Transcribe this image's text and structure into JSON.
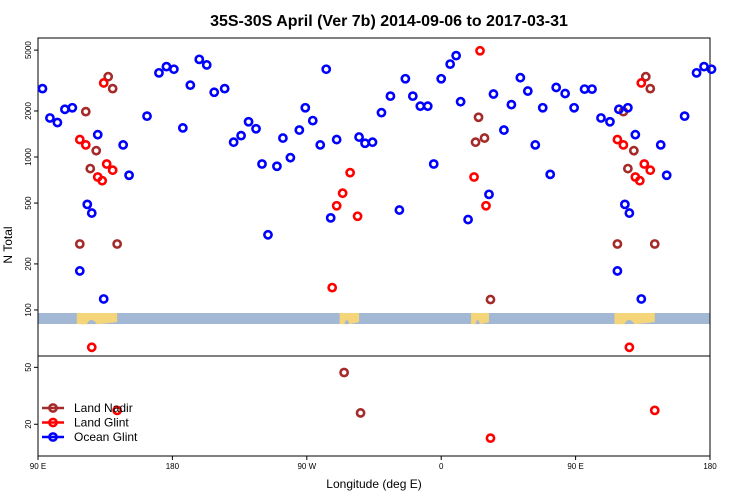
{
  "chart_data": {
    "type": "scatter",
    "title": "35S-30S April (Ver 7b)   2014-09-06 to 2017-03-31",
    "xlabel": "Longitude (deg E)",
    "ylabel": "N Total",
    "x_ticks": [
      {
        "value": 90,
        "label": "90 E"
      },
      {
        "value": 180,
        "label": "180"
      },
      {
        "value": 270,
        "label": "90 W"
      },
      {
        "value": 360,
        "label": "0"
      },
      {
        "value": 450,
        "label": "90 E"
      },
      {
        "value": 540,
        "label": "180"
      }
    ],
    "xlim": [
      90,
      540
    ],
    "upper_panel": {
      "scale": "log",
      "ylim": [
        50,
        6000
      ],
      "y_ticks": [
        {
          "value": 100,
          "label": "100"
        },
        {
          "value": 200,
          "label": "200"
        },
        {
          "value": 500,
          "label": "500"
        },
        {
          "value": 1000,
          "label": "1000"
        },
        {
          "value": 2000,
          "label": "2000"
        },
        {
          "value": 5000,
          "label": "5000"
        }
      ]
    },
    "lower_panel": {
      "scale": "log",
      "ylim": [
        12,
        60
      ],
      "y_ticks": [
        {
          "value": 20,
          "label": "20"
        },
        {
          "value": 50,
          "label": "50"
        }
      ]
    },
    "series": [
      {
        "name": "Land Nadir",
        "color": "#a52a2a",
        "points": [
          [
            118,
            270
          ],
          [
            122,
            1980
          ],
          [
            125,
            840
          ],
          [
            129,
            1100
          ],
          [
            137,
            3350
          ],
          [
            140,
            2800
          ],
          [
            143,
            270
          ],
          [
            295,
            46
          ],
          [
            306,
            24
          ],
          [
            383,
            1250
          ],
          [
            385,
            1820
          ],
          [
            389,
            1330
          ],
          [
            393,
            117
          ],
          [
            478,
            270
          ],
          [
            482,
            1980
          ],
          [
            485,
            840
          ],
          [
            489,
            1100
          ],
          [
            497,
            3350
          ],
          [
            500,
            2800
          ],
          [
            503,
            270
          ]
        ]
      },
      {
        "name": "Land Glint",
        "color": "#ff0000",
        "points": [
          [
            118,
            1300
          ],
          [
            122,
            1200
          ],
          [
            126,
            57
          ],
          [
            130,
            740
          ],
          [
            133,
            700
          ],
          [
            134,
            3050
          ],
          [
            136,
            900
          ],
          [
            140,
            820
          ],
          [
            143,
            25
          ],
          [
            287,
            140
          ],
          [
            290,
            480
          ],
          [
            294,
            580
          ],
          [
            299,
            790
          ],
          [
            304,
            410
          ],
          [
            382,
            740
          ],
          [
            386,
            4950
          ],
          [
            390,
            480
          ],
          [
            393,
            16
          ],
          [
            478,
            1300
          ],
          [
            482,
            1200
          ],
          [
            486,
            57
          ],
          [
            490,
            740
          ],
          [
            493,
            700
          ],
          [
            494,
            3050
          ],
          [
            496,
            900
          ],
          [
            500,
            820
          ],
          [
            503,
            25
          ]
        ]
      },
      {
        "name": "Ocean Glint",
        "color": "#0000ff",
        "points": [
          [
            93,
            2800
          ],
          [
            98,
            1800
          ],
          [
            103,
            1680
          ],
          [
            108,
            2050
          ],
          [
            113,
            2100
          ],
          [
            118,
            180
          ],
          [
            123,
            490
          ],
          [
            126,
            430
          ],
          [
            130,
            1400
          ],
          [
            134,
            118
          ],
          [
            147,
            1200
          ],
          [
            151,
            760
          ],
          [
            163,
            1850
          ],
          [
            171,
            3550
          ],
          [
            176,
            3900
          ],
          [
            181,
            3750
          ],
          [
            187,
            1550
          ],
          [
            192,
            2950
          ],
          [
            198,
            4350
          ],
          [
            203,
            4000
          ],
          [
            208,
            2650
          ],
          [
            215,
            2800
          ],
          [
            221,
            1250
          ],
          [
            226,
            1380
          ],
          [
            231,
            1700
          ],
          [
            236,
            1530
          ],
          [
            240,
            900
          ],
          [
            244,
            310
          ],
          [
            250,
            870
          ],
          [
            254,
            1330
          ],
          [
            259,
            990
          ],
          [
            265,
            1500
          ],
          [
            269,
            2100
          ],
          [
            274,
            1730
          ],
          [
            279,
            1200
          ],
          [
            283,
            3750
          ],
          [
            290,
            1300
          ],
          [
            286,
            400
          ],
          [
            305,
            1350
          ],
          [
            309,
            1230
          ],
          [
            314,
            1250
          ],
          [
            320,
            1950
          ],
          [
            326,
            2500
          ],
          [
            332,
            450
          ],
          [
            336,
            3250
          ],
          [
            341,
            2500
          ],
          [
            346,
            2150
          ],
          [
            351,
            2150
          ],
          [
            355,
            900
          ],
          [
            360,
            3250
          ],
          [
            366,
            4050
          ],
          [
            370,
            4600
          ],
          [
            373,
            2300
          ],
          [
            378,
            390
          ],
          [
            392,
            570
          ],
          [
            395,
            2580
          ],
          [
            402,
            1500
          ],
          [
            407,
            2200
          ],
          [
            413,
            3300
          ],
          [
            418,
            2700
          ],
          [
            423,
            1200
          ],
          [
            428,
            2100
          ],
          [
            433,
            770
          ],
          [
            437,
            2850
          ],
          [
            443,
            2600
          ],
          [
            449,
            2100
          ],
          [
            456,
            2780
          ],
          [
            461,
            2780
          ],
          [
            467,
            1800
          ],
          [
            473,
            1700
          ],
          [
            479,
            2050
          ],
          [
            485,
            2100
          ],
          [
            478,
            180
          ],
          [
            483,
            490
          ],
          [
            486,
            430
          ],
          [
            490,
            1400
          ],
          [
            494,
            118
          ],
          [
            507,
            1200
          ],
          [
            511,
            760
          ],
          [
            523,
            1850
          ],
          [
            531,
            3550
          ],
          [
            536,
            3900
          ],
          [
            541,
            3750
          ]
        ]
      }
    ],
    "legend": {
      "placement": "bottom-left",
      "entries": [
        "Land Nadir",
        "Land Glint",
        "Ocean Glint"
      ]
    },
    "grid": false,
    "map_strip": {
      "ocean_color": "#a3b8d4",
      "land_color": "#f5d57a"
    }
  }
}
